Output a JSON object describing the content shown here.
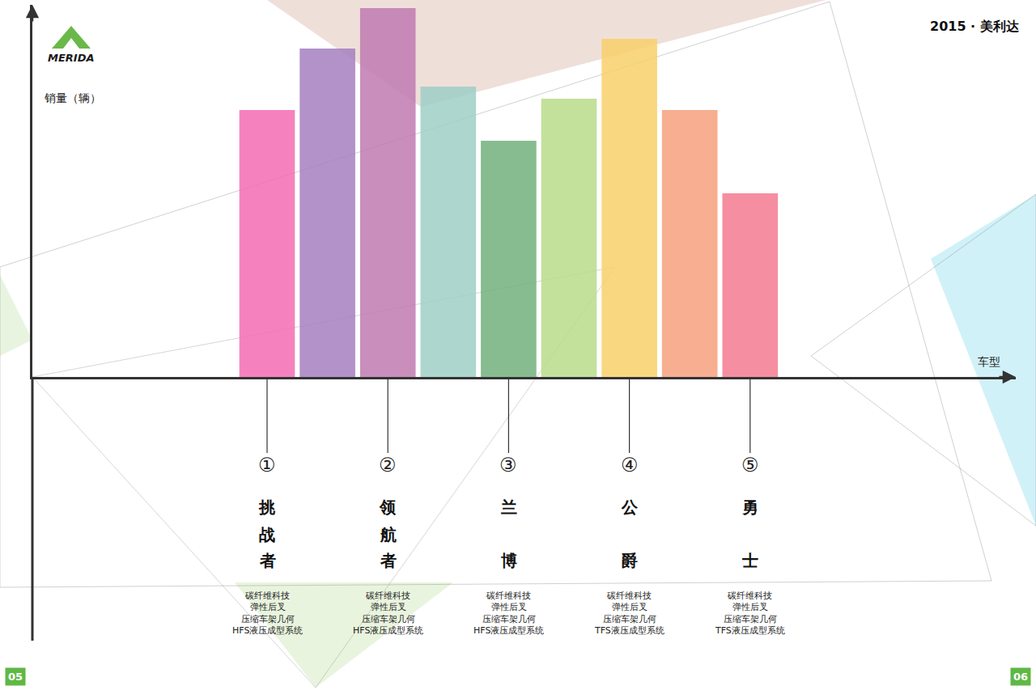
{
  "header": {
    "logo": "MERIDA",
    "title": "2015 · 美利达"
  },
  "pages": [
    "05",
    "06"
  ],
  "chart_data": {
    "type": "bar",
    "y_label": "销量（辆）",
    "x_label": "车型",
    "categories": [
      "挑战者",
      null,
      "领航者",
      null,
      "兰博",
      null,
      "公爵",
      null,
      "勇士"
    ],
    "values": [
      330,
      406,
      456,
      359,
      292,
      344,
      418,
      330,
      227
    ],
    "colors": [
      "#f36cb4",
      "#a57fc0",
      "#c07ab0",
      "#9ecfc6",
      "#72b07c",
      "#b8dc8a",
      "#f8d06a",
      "#f6a07e",
      "#f47a90"
    ],
    "ylim": [
      0,
      460
    ],
    "tick_labels": false,
    "models": [
      {
        "number": "①",
        "name": "挑战者",
        "features": [
          "碳纤维科技",
          "弹性后叉",
          "压缩车架几何",
          "HFS液压成型系统"
        ]
      },
      {
        "number": "②",
        "name": "领航者",
        "features": [
          "碳纤维科技",
          "弹性后叉",
          "压缩车架几何",
          "HFS液压成型系统"
        ]
      },
      {
        "number": "③",
        "name": "兰博",
        "features": [
          "碳纤维科技",
          "弹性后叉",
          "压缩车架几何",
          "HFS液压成型系统"
        ]
      },
      {
        "number": "④",
        "name": "公爵",
        "features": [
          "碳纤维科技",
          "弹性后叉",
          "压缩车架几何",
          "TFS液压成型系统"
        ]
      },
      {
        "number": "⑤",
        "name": "勇士",
        "features": [
          "碳纤维科技",
          "弹性后叉",
          "压缩车架几何",
          "TFS液压成型系统"
        ]
      }
    ]
  }
}
